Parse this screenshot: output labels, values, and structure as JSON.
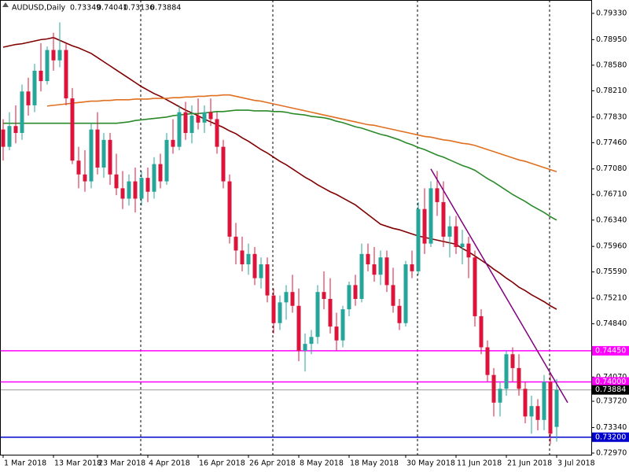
{
  "chart_data": {
    "type": "candlestick",
    "title": "AUDUSD,Daily",
    "categories": [
      "1 Mar 2018",
      null,
      null,
      null,
      null,
      null,
      null,
      null,
      "13 Mar 2018",
      null,
      null,
      null,
      null,
      null,
      null,
      "23 Mar 2018",
      null,
      null,
      null,
      null,
      null,
      null,
      null,
      "4 Apr 2018",
      null,
      null,
      null,
      null,
      null,
      null,
      null,
      "16 Apr 2018",
      null,
      null,
      null,
      null,
      null,
      null,
      null,
      "26 Apr 2018",
      null,
      null,
      null,
      null,
      null,
      null,
      null,
      "8 May 2018",
      null,
      null,
      null,
      null,
      null,
      null,
      null,
      "18 May 2018",
      null,
      null,
      null,
      null,
      null,
      null,
      null,
      null,
      "30 May 2018",
      null,
      null,
      null,
      null,
      null,
      null,
      null,
      "11 Jun 2018",
      null,
      null,
      null,
      null,
      null,
      null,
      null,
      "21 Jun 2018",
      null,
      null,
      null,
      null,
      null,
      null,
      null,
      "3 Jul 2018"
    ],
    "open": [
      0.7765,
      0.774,
      0.777,
      0.776,
      0.782,
      0.78,
      0.785,
      0.7835,
      0.788,
      0.7865,
      0.788,
      0.781,
      0.772,
      0.77,
      0.769,
      0.7765,
      0.771,
      0.775,
      0.77,
      0.768,
      0.7665,
      0.769,
      0.7665,
      0.7695,
      0.7675,
      0.7715,
      0.769,
      0.775,
      0.774,
      0.779,
      0.776,
      0.7785,
      0.7775,
      0.779,
      0.778,
      0.774,
      0.769,
      0.761,
      0.759,
      0.757,
      0.7585,
      0.755,
      0.757,
      0.7525,
      0.7485,
      0.7515,
      0.753,
      0.751,
      0.7445,
      0.7455,
      0.7465,
      0.753,
      0.752,
      0.748,
      0.746,
      0.7505,
      0.754,
      0.752,
      0.7585,
      0.757,
      0.7555,
      0.758,
      0.754,
      0.751,
      0.7485,
      0.757,
      0.756,
      0.765,
      0.76,
      0.768,
      0.766,
      0.761,
      0.7625,
      0.7595,
      0.76,
      0.758,
      0.7495,
      0.745,
      0.741,
      0.737,
      0.739,
      0.744,
      0.742,
      0.739,
      0.735,
      0.7365,
      0.7345,
      0.74,
      0.73349
    ],
    "high": [
      0.778,
      0.779,
      0.78,
      0.783,
      0.784,
      0.786,
      0.789,
      0.7885,
      0.7905,
      0.792,
      0.789,
      0.7825,
      0.774,
      0.7735,
      0.7775,
      0.779,
      0.776,
      0.776,
      0.773,
      0.7705,
      0.77,
      0.771,
      0.7705,
      0.771,
      0.7725,
      0.773,
      0.776,
      0.778,
      0.78,
      0.7805,
      0.78,
      0.781,
      0.78,
      0.781,
      0.779,
      0.775,
      0.77,
      0.763,
      0.761,
      0.76,
      0.7595,
      0.758,
      0.758,
      0.7535,
      0.7525,
      0.754,
      0.7555,
      0.7535,
      0.747,
      0.7475,
      0.754,
      0.756,
      0.755,
      0.75,
      0.751,
      0.7545,
      0.7555,
      0.76,
      0.76,
      0.7595,
      0.759,
      0.759,
      0.7565,
      0.752,
      0.7575,
      0.759,
      0.766,
      0.768,
      0.769,
      0.7705,
      0.769,
      0.764,
      0.764,
      0.762,
      0.761,
      0.759,
      0.7505,
      0.746,
      0.742,
      0.74,
      0.7445,
      0.745,
      0.744,
      0.74,
      0.738,
      0.7375,
      0.741,
      0.741,
      0.74041
    ],
    "low": [
      0.772,
      0.7735,
      0.7745,
      0.775,
      0.7785,
      0.779,
      0.782,
      0.783,
      0.785,
      0.7855,
      0.78,
      0.7715,
      0.768,
      0.7675,
      0.768,
      0.77,
      0.7695,
      0.7685,
      0.767,
      0.765,
      0.7655,
      0.7645,
      0.7655,
      0.766,
      0.7665,
      0.768,
      0.7685,
      0.773,
      0.7735,
      0.775,
      0.7745,
      0.7765,
      0.776,
      0.777,
      0.773,
      0.768,
      0.76,
      0.757,
      0.756,
      0.7555,
      0.754,
      0.7535,
      0.7515,
      0.747,
      0.7475,
      0.749,
      0.75,
      0.743,
      0.7415,
      0.744,
      0.7455,
      0.7505,
      0.747,
      0.7445,
      0.745,
      0.7495,
      0.751,
      0.7515,
      0.756,
      0.7545,
      0.754,
      0.753,
      0.75,
      0.7475,
      0.748,
      0.755,
      0.7555,
      0.7585,
      0.7595,
      0.764,
      0.7595,
      0.758,
      0.7585,
      0.757,
      0.755,
      0.748,
      0.744,
      0.74,
      0.735,
      0.735,
      0.738,
      0.74,
      0.738,
      0.734,
      0.7325,
      0.733,
      0.733,
      0.731,
      0.73136
    ],
    "close": [
      0.774,
      0.777,
      0.776,
      0.782,
      0.78,
      0.785,
      0.7835,
      0.788,
      0.7865,
      0.788,
      0.781,
      0.772,
      0.77,
      0.769,
      0.7765,
      0.771,
      0.775,
      0.77,
      0.768,
      0.7665,
      0.769,
      0.7665,
      0.7695,
      0.7675,
      0.7715,
      0.769,
      0.775,
      0.774,
      0.779,
      0.776,
      0.7785,
      0.7775,
      0.779,
      0.778,
      0.774,
      0.769,
      0.761,
      0.759,
      0.757,
      0.7585,
      0.755,
      0.757,
      0.7525,
      0.7485,
      0.7515,
      0.753,
      0.751,
      0.7445,
      0.7455,
      0.7465,
      0.753,
      0.752,
      0.748,
      0.746,
      0.7505,
      0.754,
      0.752,
      0.7585,
      0.757,
      0.7555,
      0.758,
      0.754,
      0.751,
      0.7485,
      0.757,
      0.756,
      0.765,
      0.76,
      0.768,
      0.766,
      0.761,
      0.7625,
      0.7595,
      0.76,
      0.758,
      0.7495,
      0.745,
      0.741,
      0.737,
      0.739,
      0.744,
      0.742,
      0.739,
      0.735,
      0.7365,
      0.7345,
      0.74,
      0.7325,
      0.73884
    ],
    "up_color": "#26a69a",
    "down_color": "#dc143c",
    "series": [
      {
        "color": "#800000",
        "values": [
          0.7884,
          0.7886,
          0.7888,
          0.7889,
          0.7891,
          0.7893,
          0.7895,
          0.7896,
          0.7898,
          0.7894,
          0.789,
          0.7886,
          0.7883,
          0.7879,
          0.7875,
          0.7869,
          0.7863,
          0.7857,
          0.7851,
          0.7845,
          0.7839,
          0.7833,
          0.7827,
          0.7822,
          0.7817,
          0.7813,
          0.7808,
          0.7803,
          0.7798,
          0.7793,
          0.7789,
          0.7785,
          0.778,
          0.7776,
          0.7772,
          0.7768,
          0.7763,
          0.7759,
          0.7753,
          0.7748,
          0.7742,
          0.7736,
          0.7731,
          0.7725,
          0.7719,
          0.7714,
          0.7708,
          0.7702,
          0.7696,
          0.7691,
          0.7685,
          0.768,
          0.7675,
          0.7671,
          0.7666,
          0.7661,
          0.7656,
          0.7649,
          0.7642,
          0.7635,
          0.7628,
          0.7625,
          0.7622,
          0.762,
          0.7617,
          0.7614,
          0.7611,
          0.7609,
          0.7607,
          0.7605,
          0.7603,
          0.7601,
          0.7599,
          0.7593,
          0.7588,
          0.7582,
          0.7576,
          0.757,
          0.7563,
          0.7557,
          0.755,
          0.7544,
          0.7537,
          0.7532,
          0.7526,
          0.7521,
          0.7516,
          0.751,
          0.7505
        ]
      },
      {
        "color": "#e07020",
        "values": [
          null,
          null,
          null,
          null,
          null,
          null,
          null,
          0.7799,
          0.78,
          0.7801,
          0.7802,
          0.7803,
          0.7804,
          0.7805,
          0.7806,
          0.7806,
          0.7807,
          0.7807,
          0.7808,
          0.7808,
          0.7808,
          0.7809,
          0.7809,
          0.7809,
          0.781,
          0.781,
          0.781,
          0.7811,
          0.7811,
          0.7812,
          0.7812,
          0.7813,
          0.7813,
          0.7814,
          0.7814,
          0.7815,
          0.7815,
          0.7813,
          0.7811,
          0.7809,
          0.7807,
          0.7806,
          0.7804,
          0.7802,
          0.78,
          0.7798,
          0.7796,
          0.7794,
          0.7792,
          0.779,
          0.7788,
          0.7786,
          0.7784,
          0.7782,
          0.778,
          0.7778,
          0.7776,
          0.7774,
          0.7772,
          0.7771,
          0.7769,
          0.7767,
          0.7765,
          0.7763,
          0.7761,
          0.7759,
          0.7757,
          0.7755,
          0.7754,
          0.7752,
          0.775,
          0.7749,
          0.7747,
          0.7745,
          0.7744,
          0.7742,
          0.7739,
          0.7736,
          0.7733,
          0.773,
          0.7727,
          0.7724,
          0.7721,
          0.7719,
          0.7716,
          0.7713,
          0.771,
          0.7707,
          0.7704
        ]
      },
      {
        "color": "#2a8a2a",
        "values": [
          0.7774,
          0.7774,
          0.7774,
          0.7774,
          0.7774,
          0.7774,
          0.7774,
          0.7774,
          0.7774,
          0.7774,
          0.7774,
          0.7774,
          0.7774,
          0.7774,
          0.7774,
          0.7774,
          0.7774,
          0.7774,
          0.7774,
          0.7775,
          0.7776,
          0.7778,
          0.7779,
          0.778,
          0.7781,
          0.7782,
          0.7783,
          0.7785,
          0.7786,
          0.7787,
          0.7788,
          0.7788,
          0.7789,
          0.779,
          0.7791,
          0.7791,
          0.7792,
          0.7793,
          0.7793,
          0.7793,
          0.7792,
          0.7792,
          0.7792,
          0.7791,
          0.7791,
          0.779,
          0.7788,
          0.7787,
          0.7786,
          0.7784,
          0.7783,
          0.7782,
          0.778,
          0.7777,
          0.7775,
          0.7772,
          0.7769,
          0.7767,
          0.7764,
          0.7761,
          0.7758,
          0.7756,
          0.7753,
          0.775,
          0.7746,
          0.7743,
          0.7739,
          0.7736,
          0.7732,
          0.7728,
          0.7725,
          0.7721,
          0.7717,
          0.7713,
          0.771,
          0.7706,
          0.77,
          0.7694,
          0.7689,
          0.7683,
          0.7677,
          0.7671,
          0.7666,
          0.7661,
          0.7655,
          0.765,
          0.7645,
          0.7639,
          0.7634
        ]
      }
    ],
    "trendline": {
      "color": "#800080",
      "from": [
        68,
        0.7708
      ],
      "to": [
        89.75,
        0.737
      ]
    },
    "levels": [
      {
        "value": 0.7445,
        "label": "0.74450",
        "color": "#ff00ff"
      },
      {
        "value": 0.74,
        "label": "0.74000",
        "color": "#ff00ff"
      },
      {
        "value": 0.732,
        "label": "0.73200",
        "color": "#0000cd"
      }
    ],
    "ylim": [
      0.72947,
      0.79523
    ],
    "yticks": [
      {
        "value": 0.7933,
        "label": "0.79330"
      },
      {
        "value": 0.7895,
        "label": "0.78950"
      },
      {
        "value": 0.7858,
        "label": "0.78580"
      },
      {
        "value": 0.7821,
        "label": "0.78210"
      },
      {
        "value": 0.7783,
        "label": "0.77830"
      },
      {
        "value": 0.7746,
        "label": "0.77460"
      },
      {
        "value": 0.7708,
        "label": "0.77080"
      },
      {
        "value": 0.7671,
        "label": "0.76710"
      },
      {
        "value": 0.7634,
        "label": "0.76340"
      },
      {
        "value": 0.7596,
        "label": "0.75960"
      },
      {
        "value": 0.7559,
        "label": "0.75590"
      },
      {
        "value": 0.7521,
        "label": "0.75210"
      },
      {
        "value": 0.7484,
        "label": "0.74840"
      },
      {
        "value": 0.7407,
        "label": "0.74070"
      },
      {
        "value": 0.7372,
        "label": "0.73720"
      },
      {
        "value": 0.7334,
        "label": "0.73340"
      },
      {
        "value": 0.7297,
        "label": "0.72970"
      }
    ]
  }
}
